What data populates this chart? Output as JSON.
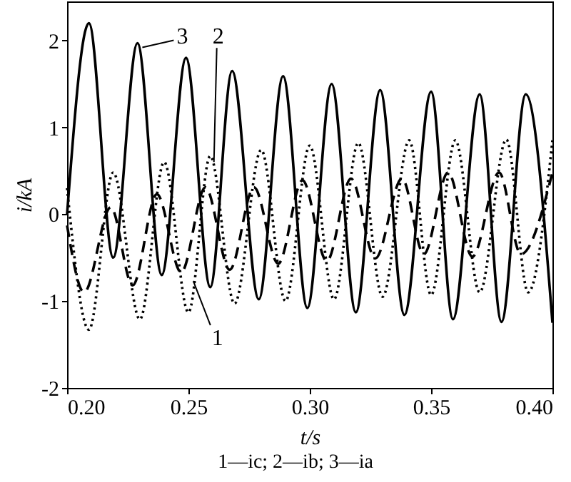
{
  "chart_data": {
    "type": "line",
    "xlabel": "t/s",
    "ylabel": "i/kA",
    "xlim": [
      0.2,
      0.4
    ],
    "xticks": [
      {
        "value": 0.2,
        "label": "0.20"
      },
      {
        "value": 0.25,
        "label": "0.25"
      },
      {
        "value": 0.3,
        "label": "0.30"
      },
      {
        "value": 0.35,
        "label": "0.35"
      },
      {
        "value": 0.4,
        "label": "0.40"
      }
    ],
    "ylim": [
      -2,
      2.45
    ],
    "yticks": [
      -2,
      -1,
      0,
      1,
      2
    ],
    "grid": false,
    "marker": "none",
    "series": [
      {
        "color": "#000000",
        "line_style": "dashed",
        "x": [
          0.2,
          0.207,
          0.218,
          0.227,
          0.237,
          0.247,
          0.257,
          0.267,
          0.277,
          0.287,
          0.297,
          0.307,
          0.317,
          0.327,
          0.338,
          0.347,
          0.357,
          0.367,
          0.378,
          0.387,
          0.4
        ],
        "values": [
          -0.13,
          -0.9,
          0.08,
          -0.82,
          0.23,
          -0.67,
          0.31,
          -0.64,
          0.31,
          -0.57,
          0.39,
          -0.54,
          0.41,
          -0.51,
          0.41,
          -0.46,
          0.48,
          -0.49,
          0.48,
          -0.46,
          0.48
        ]
      },
      {
        "color": "#000000",
        "line_style": "dotted",
        "x": [
          0.2,
          0.209,
          0.219,
          0.23,
          0.24,
          0.25,
          0.259,
          0.269,
          0.28,
          0.29,
          0.3,
          0.31,
          0.32,
          0.33,
          0.341,
          0.35,
          0.36,
          0.37,
          0.381,
          0.39,
          0.4
        ],
        "values": [
          0.3,
          -1.33,
          0.48,
          -1.21,
          0.6,
          -1.13,
          0.67,
          -1.03,
          0.74,
          -1.0,
          0.79,
          -0.98,
          0.82,
          -0.95,
          0.85,
          -0.93,
          0.85,
          -0.9,
          0.86,
          -0.9,
          0.85
        ]
      },
      {
        "color": "#000000",
        "line_style": "solid",
        "x": [
          0.2,
          0.209,
          0.219,
          0.229,
          0.239,
          0.249,
          0.259,
          0.268,
          0.279,
          0.289,
          0.299,
          0.309,
          0.319,
          0.329,
          0.339,
          0.35,
          0.359,
          0.37,
          0.379,
          0.389,
          0.4
        ],
        "values": [
          0.0,
          2.2,
          -0.5,
          1.97,
          -0.7,
          1.8,
          -0.84,
          1.65,
          -0.98,
          1.59,
          -1.08,
          1.5,
          -1.13,
          1.43,
          -1.16,
          1.41,
          -1.21,
          1.38,
          -1.24,
          1.38,
          -1.25
        ]
      }
    ],
    "annotations": [
      {
        "text": "3",
        "x": 0.231,
        "y": 1.92
      },
      {
        "text": "2",
        "x": 0.2605,
        "y": 0.6
      },
      {
        "text": "1",
        "x": 0.252,
        "y": -0.77
      },
      "1—ic; 2—ib; 3—ia"
    ]
  }
}
